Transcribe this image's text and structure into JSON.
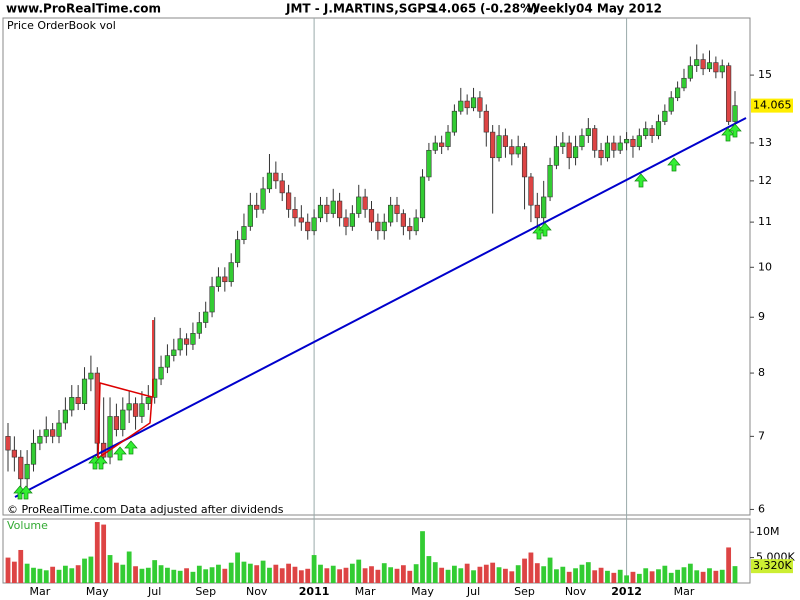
{
  "chart_data": {
    "type": "candlestick",
    "site": "www.ProRealTime.com",
    "title": "JMT - J.MARTINS,SGPS",
    "price_change": "(-0.28%)",
    "timeframe": "Weekly",
    "date": "04 May 2012",
    "panel_label": "Price OrderBook vol",
    "footnote": "© ProRealTime.com  Data adjusted after dividends",
    "log_scale": true,
    "up_color": "#33cc33",
    "down_color": "#dd4444",
    "last_label_color": "#ffee00",
    "ylim": [
      5.93,
      16.92
    ],
    "yticks": [
      6,
      7,
      8,
      9,
      10,
      11,
      12,
      13,
      15
    ],
    "categories": [
      null,
      null,
      null,
      null,
      null,
      "Mar",
      null,
      null,
      null,
      null,
      null,
      null,
      null,
      null,
      "May",
      null,
      null,
      null,
      null,
      null,
      null,
      null,
      null,
      "Jul",
      null,
      null,
      null,
      null,
      null,
      null,
      null,
      "Sep",
      null,
      null,
      null,
      null,
      null,
      null,
      null,
      "Nov",
      null,
      null,
      null,
      null,
      null,
      null,
      null,
      null,
      "2011",
      null,
      null,
      null,
      null,
      null,
      null,
      null,
      "Mar",
      null,
      null,
      null,
      null,
      null,
      null,
      null,
      null,
      "May",
      null,
      null,
      null,
      null,
      null,
      null,
      null,
      "Jul",
      null,
      null,
      null,
      null,
      null,
      null,
      null,
      "Sep",
      null,
      null,
      null,
      null,
      null,
      null,
      null,
      "Nov",
      null,
      null,
      null,
      null,
      null,
      null,
      null,
      "2012",
      null,
      null,
      null,
      null,
      null,
      null,
      null,
      null,
      "Mar",
      null,
      null,
      null,
      null,
      null,
      null,
      null,
      null
    ],
    "year_categories": [
      "2011",
      "2012"
    ],
    "open": [
      7.0,
      6.8,
      6.7,
      6.4,
      6.6,
      6.9,
      7.0,
      7.1,
      7.0,
      7.2,
      7.4,
      7.6,
      7.5,
      7.9,
      8.0,
      6.9,
      6.7,
      7.3,
      7.1,
      7.4,
      7.5,
      7.3,
      7.5,
      7.6,
      7.9,
      8.1,
      8.3,
      8.4,
      8.6,
      8.5,
      8.7,
      8.9,
      9.1,
      9.6,
      9.8,
      9.7,
      10.1,
      10.6,
      10.9,
      11.4,
      11.3,
      11.8,
      12.2,
      12.0,
      11.7,
      11.3,
      11.1,
      11.0,
      10.8,
      11.1,
      11.4,
      11.2,
      11.5,
      11.1,
      10.9,
      11.2,
      11.6,
      11.3,
      11.0,
      10.8,
      11.0,
      11.4,
      11.2,
      10.9,
      10.8,
      11.1,
      12.1,
      12.8,
      13.0,
      12.9,
      13.3,
      13.9,
      14.2,
      14.0,
      14.3,
      13.9,
      13.3,
      12.6,
      13.2,
      12.9,
      12.7,
      12.9,
      12.1,
      11.4,
      11.1,
      11.6,
      12.4,
      12.9,
      13.0,
      12.6,
      12.9,
      13.2,
      13.4,
      12.8,
      12.6,
      13.0,
      12.8,
      13.0,
      13.1,
      12.9,
      13.2,
      13.4,
      13.2,
      13.6,
      13.9,
      14.3,
      14.6,
      14.9,
      15.3,
      15.5,
      15.2,
      15.4,
      15.1,
      15.3,
      13.6
    ],
    "high": [
      7.2,
      7.0,
      6.8,
      6.8,
      7.1,
      7.1,
      7.3,
      7.2,
      7.4,
      7.6,
      7.8,
      7.8,
      8.1,
      8.3,
      8.1,
      7.6,
      7.6,
      7.5,
      7.6,
      7.7,
      7.6,
      7.7,
      7.8,
      9.0,
      8.3,
      8.5,
      8.6,
      8.8,
      8.7,
      8.9,
      9.1,
      9.3,
      9.8,
      10.0,
      10.0,
      10.3,
      10.8,
      11.2,
      11.7,
      11.7,
      12.1,
      12.7,
      12.5,
      12.2,
      11.9,
      11.6,
      11.4,
      11.2,
      11.3,
      11.6,
      11.6,
      11.8,
      11.7,
      11.3,
      11.4,
      11.9,
      11.8,
      11.5,
      11.2,
      11.2,
      11.6,
      11.6,
      11.3,
      11.1,
      11.3,
      12.3,
      13.0,
      13.2,
      13.2,
      13.5,
      14.1,
      14.6,
      14.4,
      14.6,
      14.5,
      14.1,
      13.5,
      13.5,
      13.4,
      13.1,
      13.2,
      13.0,
      12.2,
      11.7,
      12.0,
      12.6,
      13.2,
      13.3,
      13.2,
      13.2,
      13.4,
      13.7,
      13.5,
      13.0,
      13.2,
      13.2,
      13.2,
      13.3,
      13.2,
      13.4,
      13.6,
      13.5,
      13.8,
      14.1,
      14.5,
      14.8,
      15.2,
      15.6,
      16.0,
      15.7,
      15.8,
      15.6,
      15.5,
      15.4,
      14.5
    ],
    "low": [
      6.5,
      6.5,
      6.2,
      6.2,
      6.5,
      6.8,
      6.9,
      6.9,
      6.9,
      7.1,
      7.3,
      7.4,
      7.4,
      7.7,
      6.7,
      6.6,
      6.6,
      7.0,
      7.0,
      7.2,
      7.1,
      7.2,
      7.4,
      7.5,
      7.8,
      8.0,
      8.2,
      8.3,
      8.3,
      8.4,
      8.6,
      8.8,
      9.0,
      9.5,
      9.5,
      9.6,
      10.0,
      10.5,
      10.8,
      11.1,
      11.2,
      11.7,
      11.8,
      11.5,
      11.1,
      10.9,
      10.8,
      10.6,
      10.7,
      11.0,
      11.0,
      11.1,
      10.9,
      10.7,
      10.8,
      11.1,
      11.1,
      10.8,
      10.6,
      10.6,
      10.9,
      11.0,
      10.7,
      10.6,
      10.7,
      11.0,
      12.0,
      12.7,
      12.7,
      12.8,
      13.2,
      13.8,
      13.8,
      13.9,
      13.7,
      12.9,
      11.2,
      12.5,
      12.6,
      12.4,
      12.6,
      11.3,
      11.0,
      10.7,
      11.0,
      11.5,
      12.3,
      12.7,
      12.3,
      12.4,
      12.8,
      13.0,
      12.6,
      12.4,
      12.5,
      12.6,
      12.7,
      12.8,
      12.6,
      12.8,
      13.1,
      13.0,
      13.1,
      13.5,
      13.8,
      14.2,
      14.5,
      14.8,
      15.1,
      15.0,
      15.1,
      14.9,
      14.9,
      13.5,
      13.5
    ],
    "close": [
      6.8,
      6.7,
      6.4,
      6.6,
      6.9,
      7.0,
      7.1,
      7.0,
      7.2,
      7.4,
      7.6,
      7.5,
      7.9,
      8.0,
      6.9,
      6.7,
      7.3,
      7.1,
      7.4,
      7.5,
      7.3,
      7.5,
      7.6,
      7.9,
      8.1,
      8.3,
      8.4,
      8.6,
      8.5,
      8.7,
      8.9,
      9.1,
      9.6,
      9.8,
      9.7,
      10.1,
      10.6,
      10.9,
      11.4,
      11.3,
      11.8,
      12.2,
      12.0,
      11.7,
      11.3,
      11.1,
      11.0,
      10.8,
      11.1,
      11.4,
      11.2,
      11.5,
      11.1,
      10.9,
      11.2,
      11.6,
      11.3,
      11.0,
      10.8,
      11.0,
      11.4,
      11.2,
      10.9,
      10.8,
      11.1,
      12.1,
      12.8,
      13.0,
      12.9,
      13.3,
      13.9,
      14.2,
      14.0,
      14.3,
      13.9,
      13.3,
      12.6,
      13.2,
      12.9,
      12.7,
      12.9,
      12.1,
      11.4,
      11.1,
      11.6,
      12.4,
      12.9,
      13.0,
      12.6,
      12.9,
      13.2,
      13.4,
      12.8,
      12.6,
      13.0,
      12.8,
      13.0,
      13.1,
      12.9,
      13.2,
      13.4,
      13.2,
      13.6,
      13.9,
      14.3,
      14.6,
      14.9,
      15.3,
      15.5,
      15.2,
      15.4,
      15.1,
      15.3,
      13.6,
      14.065
    ],
    "volume": {
      "name": "Volume",
      "ylim": [
        0,
        12600000
      ],
      "yticks": [
        {
          "value": 10000000,
          "label": "10M"
        },
        {
          "value": 5000000,
          "label": "5,000K"
        }
      ],
      "values": [
        5000000,
        4200000,
        6500000,
        3800000,
        3000000,
        2800000,
        2500000,
        3200000,
        2600000,
        3400000,
        2900000,
        3500000,
        4800000,
        5200000,
        12000000,
        11500000,
        5500000,
        4000000,
        3600000,
        6200000,
        3300000,
        2800000,
        3000000,
        4500000,
        3500000,
        3000000,
        2600000,
        2400000,
        2900000,
        2200000,
        3400000,
        2700000,
        3100000,
        3600000,
        2800000,
        4000000,
        6000000,
        4200000,
        3800000,
        3500000,
        4400000,
        3000000,
        3600000,
        2900000,
        3800000,
        3200000,
        2500000,
        2800000,
        5500000,
        3600000,
        2900000,
        3400000,
        2700000,
        3000000,
        3800000,
        4600000,
        2900000,
        3300000,
        2600000,
        3900000,
        3100000,
        2800000,
        3500000,
        2400000,
        3700000,
        10200000,
        5300000,
        4100000,
        3000000,
        2600000,
        3400000,
        2900000,
        3800000,
        2500000,
        3200000,
        3600000,
        4000000,
        3100000,
        2800000,
        2300000,
        3500000,
        4800000,
        6000000,
        3900000,
        3300000,
        5000000,
        2700000,
        3200000,
        2200000,
        2900000,
        3600000,
        4100000,
        2500000,
        3000000,
        2400000,
        2000000,
        2600000,
        1500000,
        2200000,
        1800000,
        2900000,
        2300000,
        2700000,
        3400000,
        2000000,
        2600000,
        3100000,
        3800000,
        2500000,
        2200000,
        2900000,
        2400000,
        2600000,
        7000000,
        3320000
      ],
      "value_labels": [
        null,
        null,
        null,
        null,
        null,
        null,
        null,
        null,
        null,
        null,
        null,
        null,
        null,
        null,
        null,
        null,
        null,
        null,
        null,
        null,
        null,
        null,
        null,
        null,
        null,
        null,
        null,
        null,
        null,
        null,
        null,
        null,
        null,
        null,
        null,
        null,
        null,
        null,
        null,
        null,
        null,
        null,
        null,
        null,
        null,
        null,
        null,
        null,
        null,
        null,
        null,
        null,
        null,
        null,
        null,
        null,
        null,
        null,
        null,
        null,
        null,
        null,
        null,
        null,
        null,
        null,
        null,
        null,
        null,
        null,
        null,
        null,
        null,
        null,
        null,
        null,
        null,
        null,
        null,
        null,
        null,
        null,
        null,
        null,
        null,
        null,
        null,
        null,
        null,
        null,
        null,
        null,
        null,
        null,
        null,
        null,
        null,
        null,
        null,
        null,
        null,
        null,
        null,
        null,
        null,
        null,
        null,
        null,
        null,
        null,
        null,
        null,
        null,
        null,
        "3,320K"
      ],
      "label_color": "#ccee33"
    }
  }
}
